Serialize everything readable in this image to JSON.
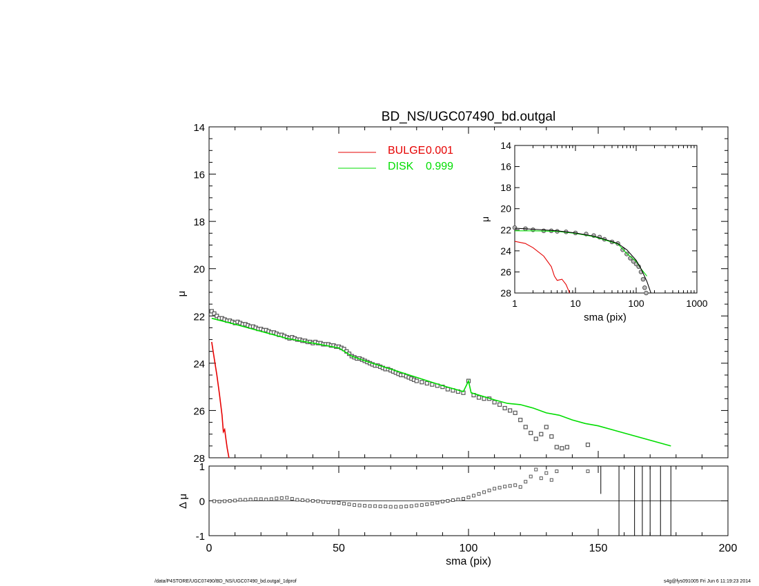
{
  "chart_data": [
    {
      "type": "scatter",
      "panel": "main",
      "title": "BD_NS/UGC07490_bd.outgal",
      "xlabel": "",
      "ylabel": "μ",
      "xlim": [
        0,
        200
      ],
      "ylim": [
        28,
        14
      ],
      "y_inverted": true,
      "yticks": [
        14,
        16,
        18,
        20,
        22,
        24,
        26,
        28
      ],
      "legend_placement": "top-center",
      "legend": [
        {
          "label": "BULGE",
          "value": "0.001",
          "color": "#e60000"
        },
        {
          "label": "DISK",
          "value": "0.999",
          "color": "#00dd00"
        }
      ],
      "series": [
        {
          "name": "data",
          "marker": "square",
          "color": "#555555",
          "x": [
            1,
            2,
            3,
            4,
            5,
            6,
            7,
            8,
            9,
            10,
            11,
            12,
            13,
            14,
            15,
            16,
            17,
            18,
            19,
            20,
            21,
            22,
            23,
            24,
            25,
            26,
            27,
            28,
            29,
            30,
            31,
            32,
            33,
            34,
            35,
            36,
            37,
            38,
            39,
            40,
            41,
            42,
            43,
            44,
            45,
            46,
            47,
            48,
            49,
            50,
            51,
            52,
            53,
            54,
            55,
            56,
            57,
            58,
            59,
            60,
            61,
            62,
            63,
            64,
            65,
            66,
            67,
            68,
            69,
            70,
            71,
            72,
            73,
            74,
            75,
            76,
            77,
            78,
            79,
            80,
            82,
            84,
            86,
            88,
            90,
            92,
            94,
            96,
            98,
            100,
            102,
            104,
            106,
            108,
            110,
            112,
            114,
            116,
            118,
            120,
            122,
            124,
            126,
            128,
            130,
            132,
            134,
            136,
            138,
            146
          ],
          "y": [
            21.8,
            21.9,
            22.0,
            22.1,
            22.1,
            22.15,
            22.2,
            22.2,
            22.25,
            22.3,
            22.25,
            22.3,
            22.35,
            22.35,
            22.4,
            22.45,
            22.45,
            22.5,
            22.55,
            22.55,
            22.6,
            22.6,
            22.65,
            22.7,
            22.7,
            22.75,
            22.8,
            22.8,
            22.85,
            22.9,
            22.95,
            22.9,
            22.95,
            23.0,
            23.0,
            23.05,
            23.05,
            23.1,
            23.1,
            23.15,
            23.1,
            23.15,
            23.15,
            23.2,
            23.2,
            23.2,
            23.25,
            23.25,
            23.3,
            23.3,
            23.35,
            23.4,
            23.5,
            23.6,
            23.7,
            23.75,
            23.8,
            23.8,
            23.85,
            23.9,
            23.95,
            24.0,
            24.05,
            24.1,
            24.1,
            24.15,
            24.2,
            24.25,
            24.25,
            24.3,
            24.35,
            24.4,
            24.45,
            24.5,
            24.5,
            24.55,
            24.6,
            24.65,
            24.7,
            24.75,
            24.8,
            24.85,
            24.9,
            24.95,
            25.0,
            25.1,
            25.15,
            25.2,
            25.25,
            24.75,
            25.35,
            25.45,
            25.5,
            25.5,
            25.65,
            25.75,
            25.9,
            26.0,
            26.1,
            26.4,
            26.7,
            26.95,
            27.2,
            27.0,
            26.7,
            27.1,
            27.55,
            27.6,
            27.55,
            27.45
          ]
        },
        {
          "name": "BULGE",
          "marker": "line",
          "color": "#e60000",
          "x": [
            1,
            2,
            3,
            4,
            5,
            5.5,
            6,
            6.5,
            7,
            8
          ],
          "y": [
            23.1,
            23.8,
            24.5,
            25.3,
            26.2,
            26.9,
            26.8,
            27.2,
            27.6,
            28.2
          ]
        },
        {
          "name": "DISK",
          "marker": "line",
          "color": "#00dd00",
          "x": [
            1,
            10,
            20,
            30,
            40,
            50,
            55,
            60,
            70,
            80,
            90,
            98,
            100,
            101,
            110,
            115,
            120,
            125,
            130,
            135,
            140,
            145,
            150,
            178
          ],
          "y": [
            22.1,
            22.35,
            22.65,
            22.95,
            23.15,
            23.35,
            23.7,
            23.9,
            24.25,
            24.6,
            24.95,
            25.2,
            24.75,
            25.25,
            25.55,
            25.7,
            25.75,
            25.9,
            26.1,
            26.2,
            26.4,
            26.55,
            26.65,
            27.5
          ]
        }
      ]
    },
    {
      "type": "scatter",
      "panel": "residual",
      "xlabel": "sma (pix)",
      "ylabel": "Δ μ",
      "xlim": [
        0,
        200
      ],
      "ylim": [
        -1,
        1
      ],
      "xticks": [
        0,
        50,
        100,
        150,
        200
      ],
      "yticks": [
        -1,
        0,
        1
      ],
      "series": [
        {
          "name": "residual",
          "marker": "square",
          "color": "#555555",
          "x": [
            2,
            4,
            6,
            8,
            10,
            12,
            14,
            16,
            18,
            20,
            22,
            24,
            26,
            28,
            30,
            32,
            34,
            36,
            38,
            40,
            42,
            44,
            46,
            48,
            50,
            52,
            54,
            56,
            58,
            60,
            62,
            64,
            66,
            68,
            70,
            72,
            74,
            76,
            78,
            80,
            82,
            84,
            86,
            88,
            90,
            92,
            94,
            96,
            98,
            100,
            102,
            104,
            106,
            108,
            110,
            112,
            114,
            116,
            118,
            120,
            122,
            124,
            126,
            128,
            130,
            132,
            134,
            146
          ],
          "y": [
            -0.01,
            -0.02,
            -0.01,
            0.0,
            0.01,
            0.03,
            0.03,
            0.04,
            0.05,
            0.05,
            0.04,
            0.05,
            0.07,
            0.08,
            0.09,
            0.06,
            0.03,
            0.02,
            0.01,
            0.0,
            -0.01,
            -0.03,
            -0.04,
            -0.05,
            -0.06,
            -0.08,
            -0.1,
            -0.12,
            -0.13,
            -0.14,
            -0.15,
            -0.15,
            -0.16,
            -0.16,
            -0.17,
            -0.17,
            -0.17,
            -0.16,
            -0.15,
            -0.13,
            -0.12,
            -0.1,
            -0.08,
            -0.05,
            -0.02,
            0.0,
            0.02,
            0.04,
            0.06,
            0.1,
            0.15,
            0.2,
            0.25,
            0.3,
            0.35,
            0.38,
            0.41,
            0.43,
            0.45,
            0.4,
            0.55,
            0.7,
            0.9,
            0.65,
            0.8,
            0.6,
            0.85,
            0.85
          ]
        },
        {
          "name": "errorbars",
          "marker": "vline",
          "color": "#000000",
          "x": [
            151,
            158,
            164,
            167,
            170,
            174,
            178
          ],
          "ybottom": [
            0.2,
            -1.05,
            -1.05,
            -1.05,
            -1.05,
            -1.05,
            -1.05
          ],
          "ytop": [
            1.05,
            1.05,
            1.05,
            1.05,
            1.05,
            1.05,
            1.05
          ]
        }
      ]
    },
    {
      "type": "scatter",
      "panel": "inset",
      "xlabel": "sma (pix)",
      "ylabel": "μ",
      "x_scale": "log",
      "xlim": [
        1,
        1000
      ],
      "ylim": [
        28,
        14
      ],
      "y_inverted": true,
      "xticks": [
        1,
        10,
        100,
        1000
      ],
      "yticks": [
        14,
        16,
        18,
        20,
        22,
        24,
        26,
        28
      ],
      "series": [
        {
          "name": "data",
          "marker": "circle",
          "color": "#555555",
          "x": [
            1,
            1.5,
            2,
            3,
            4,
            5,
            7,
            10,
            15,
            20,
            25,
            30,
            40,
            50,
            60,
            70,
            80,
            90,
            100,
            110,
            120,
            130,
            138,
            146
          ],
          "y": [
            21.8,
            21.9,
            22.0,
            22.1,
            22.1,
            22.15,
            22.2,
            22.3,
            22.4,
            22.55,
            22.7,
            22.9,
            23.15,
            23.3,
            23.9,
            24.3,
            24.7,
            25.0,
            25.25,
            25.5,
            26.0,
            26.7,
            27.5,
            28.0
          ]
        },
        {
          "name": "BULGE",
          "marker": "line",
          "color": "#e60000",
          "x": [
            1,
            1.5,
            2,
            3,
            4,
            4.5,
            5,
            6,
            7,
            8
          ],
          "y": [
            23.1,
            23.3,
            23.7,
            24.5,
            25.5,
            26.4,
            26.8,
            26.7,
            27.2,
            28.0
          ]
        },
        {
          "name": "DISK",
          "marker": "line",
          "color": "#00dd00",
          "x": [
            1,
            2,
            5,
            10,
            20,
            30,
            50,
            70,
            100,
            120,
            150
          ],
          "y": [
            22.1,
            22.1,
            22.15,
            22.35,
            22.65,
            22.95,
            23.35,
            24.25,
            25.0,
            25.7,
            26.4
          ]
        },
        {
          "name": "total",
          "marker": "line",
          "color": "#000000",
          "x": [
            1,
            2,
            5,
            10,
            20,
            30,
            50,
            70,
            100,
            120,
            150,
            175
          ],
          "y": [
            21.85,
            21.95,
            22.1,
            22.3,
            22.6,
            22.9,
            23.3,
            23.9,
            24.9,
            25.7,
            26.9,
            28.0
          ]
        }
      ]
    }
  ],
  "footer": {
    "left": "/data/P4STORE/UGC07490/BD_NS/UGC07490_bd.outgal_1dprof",
    "right": "s4g@fys091005  Fri Jun  6 11:19:23 2014"
  }
}
